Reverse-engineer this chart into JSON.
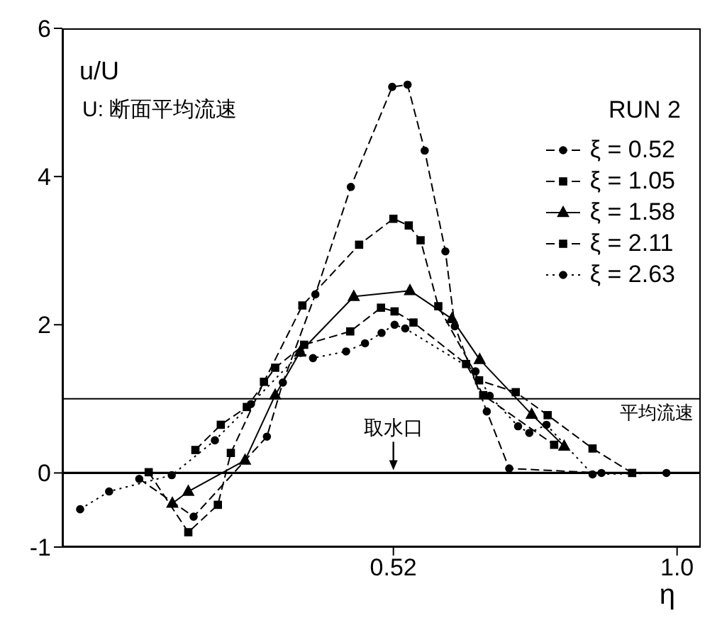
{
  "chart_data": {
    "type": "line",
    "ylabel": "u/U",
    "xlabel": "η",
    "annotations": [
      "U: 断面平均流速",
      "RUN 2",
      {
        "text": "取水口",
        "x": 0.52,
        "y": 0
      }
    ],
    "xlim": [
      -0.04,
      1.04
    ],
    "xticks": [
      0.52,
      {
        "value": 1.0,
        "label": "1.0"
      }
    ],
    "ylim": [
      -1,
      6
    ],
    "yticks": [
      -1,
      0,
      2,
      4,
      6
    ],
    "grid": false,
    "legend": "top right",
    "ref_lines": [
      {
        "axis": "y",
        "value": 1,
        "label": "平均流速"
      },
      {
        "axis": "y",
        "value": 0,
        "label": null
      }
    ],
    "series": [
      {
        "name": "ξ = 0.52",
        "color": "#000000",
        "marker": "circle",
        "line_style": "dashed",
        "x": [
          0.09,
          0.182,
          0.306,
          0.333,
          0.388,
          0.448,
          0.518,
          0.544,
          0.573,
          0.608,
          0.624,
          0.678,
          0.716,
          0.872
        ],
        "values": [
          -0.08,
          -0.59,
          0.49,
          1.22,
          2.41,
          3.86,
          5.21,
          5.24,
          4.35,
          2.99,
          1.98,
          0.83,
          0.06,
          0
        ]
      },
      {
        "name": "ξ = 1.05",
        "color": "#000000",
        "marker": "square",
        "line_style": "dashed",
        "x": [
          0.106,
          0.173,
          0.223,
          0.245,
          0.301,
          0.366,
          0.462,
          0.52,
          0.546,
          0.566,
          0.596,
          0.665,
          0.727,
          0.781,
          0.857,
          0.924
        ],
        "values": [
          0.01,
          -0.8,
          -0.43,
          0.27,
          1.23,
          2.26,
          3.08,
          3.43,
          3.34,
          3.14,
          2.25,
          1.25,
          1.09,
          0.78,
          0.33,
          0
        ]
      },
      {
        "name": "ξ = 1.58",
        "color": "#000000",
        "marker": "triangle",
        "line_style": "solid",
        "x": [
          0.146,
          0.173,
          0.269,
          0.32,
          0.362,
          0.453,
          0.548,
          0.619,
          0.666,
          0.754,
          0.809
        ],
        "values": [
          -0.41,
          -0.25,
          0.17,
          1.05,
          1.63,
          2.38,
          2.46,
          2.08,
          1.53,
          0.79,
          0.36
        ]
      },
      {
        "name": "ξ = 2.11",
        "color": "#000000",
        "marker": "square",
        "line_style": "dashed",
        "x": [
          0.185,
          0.228,
          0.272,
          0.32,
          0.369,
          0.447,
          0.499,
          0.522,
          0.554,
          0.643,
          0.672,
          0.792
        ],
        "values": [
          0.31,
          0.65,
          0.89,
          1.42,
          1.73,
          1.91,
          2.23,
          2.18,
          2.03,
          1.47,
          1.05,
          0.38
        ]
      },
      {
        "name": "ξ = 2.63",
        "color": "#000000",
        "marker": "circle",
        "line_style": "dotted",
        "x": [
          -0.01,
          0.039,
          0.145,
          0.218,
          0.279,
          0.363,
          0.384,
          0.44,
          0.472,
          0.5,
          0.522,
          0.54,
          0.659,
          0.683,
          0.731,
          0.75,
          0.779,
          0.857,
          0.982
        ],
        "values": [
          -0.49,
          -0.25,
          -0.03,
          0.44,
          0.93,
          1.62,
          1.55,
          1.64,
          1.75,
          1.89,
          2.0,
          1.95,
          1.37,
          1.04,
          0.63,
          0.54,
          0.65,
          -0.02,
          0
        ]
      }
    ]
  }
}
